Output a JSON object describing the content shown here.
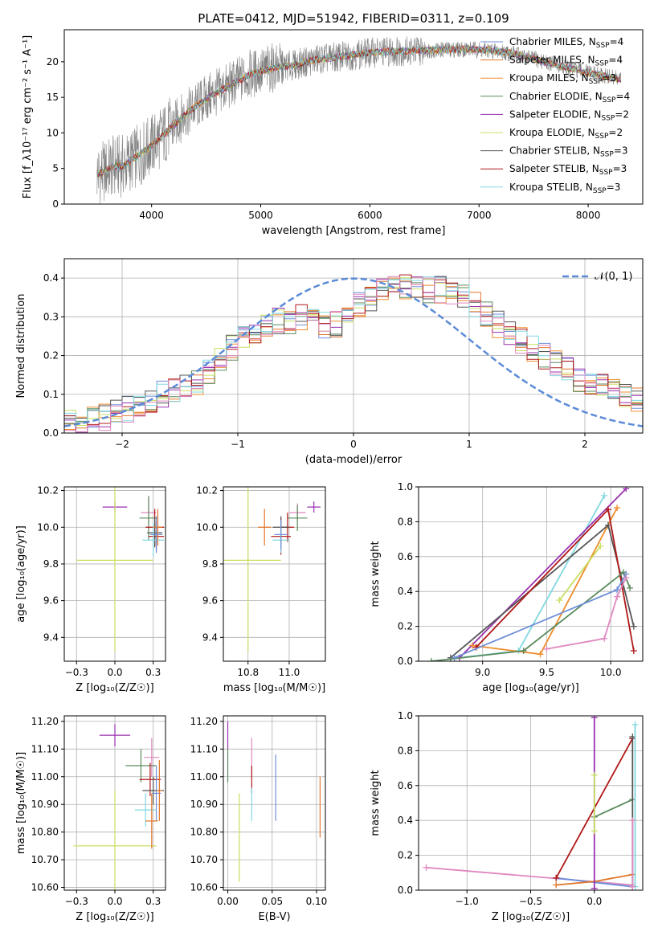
{
  "page_title": "PLATE=0412, MJD=51942, FIBERID=0311, z=0.109",
  "model_colors": [
    "#6e8fd8",
    "#e0772a",
    "#f08c2c",
    "#5a8a5c",
    "#9a30b0",
    "#c8e060",
    "#555555",
    "#b01818",
    "#80d8e0",
    "#e088c0"
  ],
  "chart_data": [
    {
      "id": "spectrum",
      "type": "line",
      "title": "PLATE=0412, MJD=51942, FIBERID=0311, z=0.109",
      "xlabel": "wavelength [Angstrom, rest frame]",
      "ylabel": "Flux [f_λ10⁻¹⁷ erg cm⁻² s⁻¹ A⁻¹]",
      "xlim": [
        3200,
        8500
      ],
      "ylim": [
        0,
        24.5
      ],
      "xticks": [
        4000,
        5000,
        6000,
        7000,
        8000
      ],
      "yticks": [
        0,
        5,
        10,
        15,
        20
      ],
      "grid": false,
      "legend_position": "upper-right",
      "data_color": "#808080",
      "data_wavelength_range": [
        3500,
        8300
      ],
      "continuum": {
        "x": [
          3480,
          3550,
          3650,
          3750,
          3850,
          3950,
          4100,
          4300,
          4500,
          4700,
          4900,
          5100,
          5300,
          5500,
          5700,
          5900,
          6100,
          6300,
          6500,
          6700,
          6900,
          7100,
          7300,
          7500,
          7700,
          7900,
          8100,
          8300
        ],
        "y": [
          4.2,
          4.4,
          5.3,
          5.4,
          6.5,
          7.6,
          9.6,
          12.5,
          14.8,
          16.5,
          18.2,
          19.1,
          19.5,
          20.3,
          20.6,
          21.1,
          21.4,
          21.5,
          21.6,
          21.7,
          21.8,
          21.6,
          21.2,
          20.4,
          19.6,
          18.8,
          18.1,
          17.5
        ]
      },
      "series": [
        {
          "name": "Chabrier MILES, N_SSP=4",
          "label_main": "Chabrier MILES, N",
          "label_sub": "SSP",
          "label_end": "=4",
          "color": "#6e8fd8"
        },
        {
          "name": "Salpeter MILES, N_SSP=4",
          "label_main": "Salpeter MILES, N",
          "label_sub": "SSP",
          "label_end": "=4",
          "color": "#e0772a"
        },
        {
          "name": "Kroupa MILES, N_SSP=3",
          "label_main": "Kroupa MILES, N",
          "label_sub": "SSP",
          "label_end": "=3",
          "color": "#f08c2c"
        },
        {
          "name": "Chabrier ELODIE, N_SSP=4",
          "label_main": "Chabrier ELODIE, N",
          "label_sub": "SSP",
          "label_end": "=4",
          "color": "#5a8a5c"
        },
        {
          "name": "Salpeter ELODIE, N_SSP=2",
          "label_main": "Salpeter ELODIE, N",
          "label_sub": "SSP",
          "label_end": "=2",
          "color": "#9a30b0"
        },
        {
          "name": "Kroupa ELODIE, N_SSP=2",
          "label_main": "Kroupa ELODIE, N",
          "label_sub": "SSP",
          "label_end": "=2",
          "color": "#c8e060"
        },
        {
          "name": "Chabrier STELIB, N_SSP=3",
          "label_main": "Chabrier STELIB, N",
          "label_sub": "SSP",
          "label_end": "=3",
          "color": "#555555"
        },
        {
          "name": "Salpeter STELIB, N_SSP=3",
          "label_main": "Salpeter STELIB, N",
          "label_sub": "SSP",
          "label_end": "=3",
          "color": "#b01818"
        },
        {
          "name": "Kroupa STELIB, N_SSP=3",
          "label_main": "Kroupa STELIB, N",
          "label_sub": "SSP",
          "label_end": "=3",
          "color": "#80d8e0"
        }
      ]
    },
    {
      "id": "residuals",
      "type": "histogram",
      "xlabel": "(data-model)/error",
      "ylabel": "Normed distribution",
      "xlim": [
        -2.5,
        2.5
      ],
      "ylim": [
        0,
        0.45
      ],
      "xticks": [
        -2,
        -1,
        0,
        1,
        2
      ],
      "yticks": [
        0.0,
        0.1,
        0.2,
        0.3,
        0.4
      ],
      "grid": true,
      "legend_position": "upper-right",
      "reference_curve": {
        "name": "𝒩(0, 1)",
        "type": "gaussian",
        "mean": 0,
        "sigma": 1,
        "color": "#5b8bd8"
      },
      "bin_width": 0.1,
      "envelope": [
        0.025,
        0.03,
        0.035,
        0.04,
        0.05,
        0.06,
        0.07,
        0.085,
        0.1,
        0.11,
        0.12,
        0.13,
        0.16,
        0.19,
        0.22,
        0.24,
        0.26,
        0.28,
        0.29,
        0.29,
        0.3,
        0.29,
        0.28,
        0.28,
        0.31,
        0.33,
        0.35,
        0.37,
        0.38,
        0.38,
        0.38,
        0.37,
        0.37,
        0.36,
        0.35,
        0.33,
        0.31,
        0.28,
        0.26,
        0.24,
        0.22,
        0.2,
        0.18,
        0.16,
        0.14,
        0.13,
        0.12,
        0.11,
        0.1,
        0.09
      ]
    },
    {
      "id": "age_vs_z",
      "type": "errorbar",
      "xlabel": "Z [log₁₀(Z/Z☉)]",
      "ylabel": "age  [log₁₀(age/yr)]",
      "xlim": [
        -0.33,
        0.33
      ],
      "ylim": [
        9.27,
        10.22
      ],
      "xticks": [
        -0.25,
        0.0,
        0.25
      ],
      "yticks": [
        9.4,
        9.6,
        9.8,
        10.0,
        10.2
      ],
      "grid": true,
      "points": [
        {
          "x": 0.0,
          "y": 10.11,
          "xerr": 0.08,
          "yerr": 0.03,
          "color": "#9a30b0"
        },
        {
          "x": 0.0,
          "y": 9.82,
          "xerr": 0.25,
          "yerr": 0.5,
          "color": "#c8e060"
        },
        {
          "x": 0.22,
          "y": 10.08,
          "xerr": 0.05,
          "yerr": 0.09,
          "color": "#e088c0"
        },
        {
          "x": 0.22,
          "y": 10.05,
          "xerr": 0.06,
          "yerr": 0.12,
          "color": "#5a8a5c"
        },
        {
          "x": 0.26,
          "y": 10.0,
          "xerr": 0.06,
          "yerr": 0.1,
          "color": "#b01818"
        },
        {
          "x": 0.27,
          "y": 9.95,
          "xerr": 0.05,
          "yerr": 0.08,
          "color": "#b01818"
        },
        {
          "x": 0.26,
          "y": 9.97,
          "xerr": 0.05,
          "yerr": 0.08,
          "color": "#555555"
        },
        {
          "x": 0.25,
          "y": 9.93,
          "xerr": 0.07,
          "yerr": 0.09,
          "color": "#80d8e0"
        },
        {
          "x": 0.28,
          "y": 10.0,
          "xerr": 0.03,
          "yerr": 0.1,
          "color": "#e0772a"
        },
        {
          "x": 0.27,
          "y": 9.96,
          "xerr": 0.04,
          "yerr": 0.1,
          "color": "#6e8fd8"
        }
      ]
    },
    {
      "id": "age_vs_mass",
      "type": "errorbar",
      "xlabel": "mass [log₁₀(M/M☉)]",
      "ylabel": "",
      "xlim": [
        10.6,
        11.22
      ],
      "ylim": [
        9.27,
        10.22
      ],
      "xticks": [
        10.75,
        11.0
      ],
      "yticks": [
        9.4,
        9.6,
        9.8,
        10.0,
        10.2
      ],
      "grid": true,
      "points": [
        {
          "x": 11.15,
          "y": 10.11,
          "xerr": 0.04,
          "yerr": 0.03,
          "color": "#9a30b0"
        },
        {
          "x": 10.75,
          "y": 9.82,
          "xerr": 0.2,
          "yerr": 0.5,
          "color": "#c8e060"
        },
        {
          "x": 11.05,
          "y": 10.08,
          "xerr": 0.05,
          "yerr": 0.05,
          "color": "#e088c0"
        },
        {
          "x": 11.05,
          "y": 10.05,
          "xerr": 0.06,
          "yerr": 0.07,
          "color": "#5a8a5c"
        },
        {
          "x": 10.95,
          "y": 9.95,
          "xerr": 0.06,
          "yerr": 0.1,
          "color": "#b01818"
        },
        {
          "x": 10.99,
          "y": 10.0,
          "xerr": 0.04,
          "yerr": 0.08,
          "color": "#b01818"
        },
        {
          "x": 10.95,
          "y": 10.0,
          "xerr": 0.05,
          "yerr": 0.06,
          "color": "#555555"
        },
        {
          "x": 10.95,
          "y": 9.93,
          "xerr": 0.05,
          "yerr": 0.07,
          "color": "#80d8e0"
        },
        {
          "x": 10.85,
          "y": 10.0,
          "xerr": 0.04,
          "yerr": 0.1,
          "color": "#e0772a"
        },
        {
          "x": 10.95,
          "y": 9.96,
          "xerr": 0.04,
          "yerr": 0.08,
          "color": "#6e8fd8"
        }
      ]
    },
    {
      "id": "weight_vs_age",
      "type": "line",
      "xlabel": "age  [log₁₀(age/yr)]",
      "ylabel": "mass weight",
      "xlim": [
        8.5,
        10.25
      ],
      "ylim": [
        0,
        1.0
      ],
      "xticks": [
        9.0,
        9.5,
        10.0
      ],
      "yticks": [
        0.0,
        0.2,
        0.4,
        0.6,
        0.8,
        1.0
      ],
      "grid": true,
      "series": [
        {
          "color": "#80d8e0",
          "points": [
            [
              8.82,
              0.02
            ],
            [
              9.28,
              0.06
            ],
            [
              9.95,
              0.95
            ]
          ]
        },
        {
          "color": "#9a30b0",
          "points": [
            [
              8.82,
              0.02
            ],
            [
              10.12,
              0.99
            ]
          ]
        },
        {
          "color": "#f08c2c",
          "points": [
            [
              8.92,
              0.09
            ],
            [
              9.45,
              0.04
            ],
            [
              10.05,
              0.88
            ]
          ]
        },
        {
          "color": "#c8e060",
          "points": [
            [
              9.6,
              0.35
            ],
            [
              9.92,
              0.66
            ]
          ]
        },
        {
          "color": "#555555",
          "points": [
            [
              8.75,
              0.02
            ],
            [
              9.98,
              0.78
            ],
            [
              10.18,
              0.2
            ]
          ]
        },
        {
          "color": "#b01818",
          "points": [
            [
              8.95,
              0.08
            ],
            [
              9.98,
              0.87
            ],
            [
              10.18,
              0.06
            ]
          ]
        },
        {
          "color": "#5a8a5c",
          "points": [
            [
              8.6,
              0.0
            ],
            [
              9.32,
              0.06
            ],
            [
              10.1,
              0.51
            ],
            [
              10.15,
              0.42
            ]
          ]
        },
        {
          "color": "#6e8fd8",
          "points": [
            [
              8.78,
              0.02
            ],
            [
              10.05,
              0.41
            ],
            [
              10.12,
              0.5
            ]
          ]
        },
        {
          "color": "#e088c0",
          "points": [
            [
              9.5,
              0.07
            ],
            [
              9.95,
              0.13
            ],
            [
              10.05,
              0.37
            ],
            [
              10.12,
              0.48
            ]
          ]
        }
      ]
    },
    {
      "id": "mass_vs_z",
      "type": "errorbar",
      "xlabel": "Z [log₁₀(Z/Z☉)]",
      "ylabel": "mass [log₁₀(M/M☉)]",
      "xlim": [
        -0.33,
        0.33
      ],
      "ylim": [
        10.59,
        11.22
      ],
      "xticks": [
        -0.25,
        0.0,
        0.25
      ],
      "yticks": [
        10.6,
        10.7,
        10.8,
        10.9,
        11.0,
        11.1,
        11.2
      ],
      "grid": true,
      "points": [
        {
          "x": 0.0,
          "y": 11.15,
          "xerr": 0.1,
          "yerr": 0.04,
          "color": "#9a30b0"
        },
        {
          "x": 0.0,
          "y": 10.75,
          "xerr": 0.27,
          "yerr": 0.2,
          "color": "#c8e060"
        },
        {
          "x": 0.24,
          "y": 11.07,
          "xerr": 0.05,
          "yerr": 0.07,
          "color": "#e088c0"
        },
        {
          "x": 0.17,
          "y": 11.04,
          "xerr": 0.1,
          "yerr": 0.06,
          "color": "#5a8a5c"
        },
        {
          "x": 0.23,
          "y": 10.99,
          "xerr": 0.07,
          "yerr": 0.06,
          "color": "#b01818"
        },
        {
          "x": 0.25,
          "y": 10.95,
          "xerr": 0.07,
          "yerr": 0.05,
          "color": "#555555"
        },
        {
          "x": 0.27,
          "y": 10.94,
          "xerr": 0.03,
          "yerr": 0.1,
          "color": "#6e8fd8"
        },
        {
          "x": 0.2,
          "y": 10.88,
          "xerr": 0.07,
          "yerr": 0.06,
          "color": "#80d8e0"
        },
        {
          "x": 0.24,
          "y": 10.84,
          "xerr": 0.04,
          "yerr": 0.1,
          "color": "#e0772a"
        },
        {
          "x": 0.29,
          "y": 10.95,
          "xerr": 0.02,
          "yerr": 0.11,
          "color": "#e0772a"
        }
      ]
    },
    {
      "id": "mass_vs_ebv",
      "type": "errorbar",
      "xlabel": "E(B-V)",
      "ylabel": "",
      "xlim": [
        -0.005,
        0.11
      ],
      "ylim": [
        10.59,
        11.22
      ],
      "xticks": [
        0.0,
        0.05,
        0.1
      ],
      "yticks": [
        10.6,
        10.7,
        10.8,
        10.9,
        11.0,
        11.1,
        11.2
      ],
      "grid": true,
      "points": [
        {
          "x": 0.0,
          "y": 11.15,
          "xerr": 0,
          "yerr": 0.05,
          "color": "#9a30b0"
        },
        {
          "x": 0.0,
          "y": 11.04,
          "xerr": 0,
          "yerr": 0.06,
          "color": "#5a8a5c"
        },
        {
          "x": 0.013,
          "y": 10.78,
          "xerr": 0,
          "yerr": 0.16,
          "color": "#c8e060"
        },
        {
          "x": 0.027,
          "y": 11.07,
          "xerr": 0,
          "yerr": 0.07,
          "color": "#e088c0"
        },
        {
          "x": 0.027,
          "y": 10.99,
          "xerr": 0,
          "yerr": 0.05,
          "color": "#b01818"
        },
        {
          "x": 0.027,
          "y": 10.9,
          "xerr": 0,
          "yerr": 0.06,
          "color": "#80d8e0"
        },
        {
          "x": 0.054,
          "y": 10.96,
          "xerr": 0,
          "yerr": 0.12,
          "color": "#6e8fd8"
        },
        {
          "x": 0.104,
          "y": 10.89,
          "xerr": 0,
          "yerr": 0.11,
          "color": "#e0772a"
        }
      ]
    },
    {
      "id": "weight_vs_z",
      "type": "line",
      "xlabel": "Z [log₁₀(Z/Z☉)]",
      "ylabel": "mass weight",
      "xlim": [
        -1.38,
        0.38
      ],
      "ylim": [
        0,
        1.0
      ],
      "xticks": [
        -1.0,
        -0.5,
        0.0
      ],
      "yticks": [
        0.0,
        0.2,
        0.4,
        0.6,
        0.8,
        1.0
      ],
      "grid": true,
      "series": [
        {
          "color": "#e088c0",
          "points": [
            [
              -1.32,
              0.13
            ],
            [
              0.3,
              0.03
            ]
          ]
        },
        {
          "color": "#6e8fd8",
          "points": [
            [
              -0.3,
              0.07
            ],
            [
              0.3,
              0.02
            ]
          ]
        },
        {
          "color": "#e0772a",
          "points": [
            [
              -0.3,
              0.03
            ],
            [
              0.0,
              0.05
            ],
            [
              0.3,
              0.09
            ]
          ]
        },
        {
          "color": "#b01818",
          "points": [
            [
              -0.3,
              0.07
            ],
            [
              0.3,
              0.87
            ]
          ]
        },
        {
          "color": "#5a8a5c",
          "points": [
            [
              0.0,
              0.42
            ],
            [
              0.3,
              0.52
            ]
          ]
        },
        {
          "color": "#9a30b0",
          "points": [
            [
              0.0,
              0.01
            ],
            [
              0.0,
              0.99
            ]
          ]
        },
        {
          "color": "#c8e060",
          "points": [
            [
              0.0,
              0.34
            ],
            [
              0.0,
              0.66
            ]
          ]
        },
        {
          "color": "#555555",
          "points": [
            [
              0.3,
              0.02
            ],
            [
              0.3,
              0.88
            ]
          ]
        },
        {
          "color": "#80d8e0",
          "points": [
            [
              0.32,
              0.02
            ],
            [
              0.32,
              0.95
            ]
          ]
        },
        {
          "color": "#e088c0",
          "points": [
            [
              0.3,
              0.02
            ],
            [
              0.3,
              0.4
            ]
          ]
        }
      ]
    }
  ]
}
